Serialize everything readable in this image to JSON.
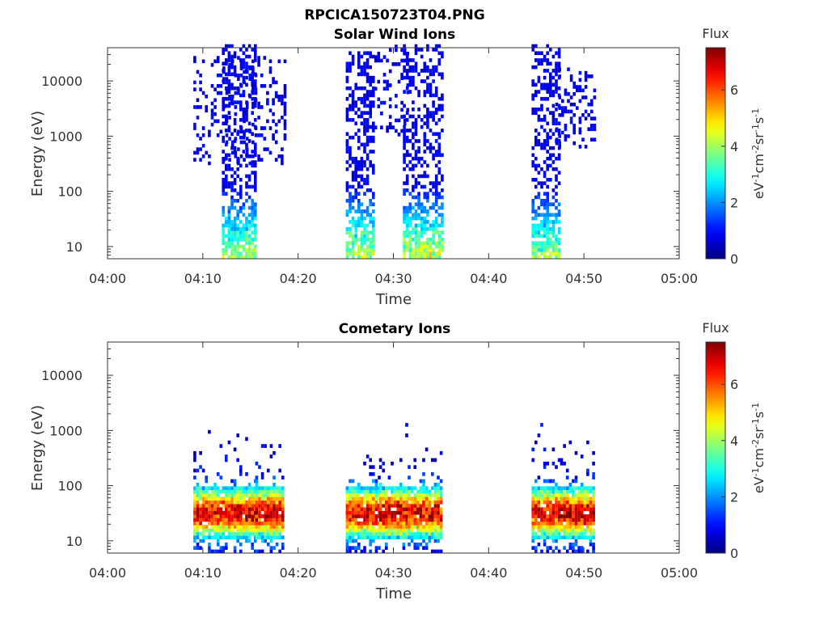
{
  "figure": {
    "title": "RPCICA150723T04.PNG"
  },
  "colorbar": {
    "label": "Flux",
    "ticks": [
      "0",
      "2",
      "4",
      "6"
    ],
    "unit_parts": [
      "eV",
      "-1",
      "cm",
      "-2",
      "sr",
      "-1",
      "s",
      "-1"
    ]
  },
  "chart_data": [
    {
      "type": "heatmap",
      "title": "Solar Wind Ions",
      "xlabel": "Time",
      "ylabel": "Energy (eV)",
      "yscale": "log",
      "ylim": [
        6,
        40000
      ],
      "xlim": [
        "04:00",
        "05:00"
      ],
      "xticks": [
        "04:00",
        "04:10",
        "04:20",
        "04:30",
        "04:40",
        "04:50",
        "05:00"
      ],
      "yticks": [
        "10",
        "100",
        "1000",
        "10000"
      ],
      "colorbar_range": [
        0,
        7.5
      ],
      "legend_position": "right",
      "grid": false,
      "bursts": [
        {
          "time_start": "04:09",
          "time_end": "04:18.5",
          "energy_min": 300,
          "energy_max": 25000,
          "sparse": true,
          "peak_flux": 2.5
        },
        {
          "time_start": "04:12",
          "time_end": "04:15.5",
          "energy_min": 6,
          "energy_max": 40000,
          "sparse": false,
          "peak_flux": 4.0
        },
        {
          "time_start": "04:25",
          "time_end": "04:28",
          "energy_min": 6,
          "energy_max": 30000,
          "sparse": false,
          "peak_flux": 4.2
        },
        {
          "time_start": "04:28",
          "time_end": "04:31.5",
          "energy_min": 1000,
          "energy_max": 40000,
          "sparse": true,
          "peak_flux": 2.0
        },
        {
          "time_start": "04:31",
          "time_end": "04:35",
          "energy_min": 6,
          "energy_max": 40000,
          "sparse": false,
          "peak_flux": 4.5
        },
        {
          "time_start": "04:44.5",
          "time_end": "04:47.5",
          "energy_min": 6,
          "energy_max": 40000,
          "sparse": false,
          "peak_flux": 3.8
        },
        {
          "time_start": "04:47",
          "time_end": "04:51",
          "energy_min": 600,
          "energy_max": 20000,
          "sparse": true,
          "peak_flux": 2.5
        }
      ]
    },
    {
      "type": "heatmap",
      "title": "Cometary Ions",
      "xlabel": "Time",
      "ylabel": "Energy (eV)",
      "yscale": "log",
      "ylim": [
        6,
        40000
      ],
      "xlim": [
        "04:00",
        "05:00"
      ],
      "xticks": [
        "04:00",
        "04:10",
        "04:20",
        "04:30",
        "04:40",
        "04:50",
        "05:00"
      ],
      "yticks": [
        "10",
        "100",
        "1000",
        "10000"
      ],
      "colorbar_range": [
        0,
        7.5
      ],
      "legend_position": "right",
      "grid": false,
      "bursts": [
        {
          "time_start": "04:09",
          "time_end": "04:12",
          "energy_min": 6,
          "energy_max": 1300,
          "peak_energy": 30,
          "peak_flux": 7.0
        },
        {
          "time_start": "04:12",
          "time_end": "04:15.5",
          "energy_min": 6,
          "energy_max": 800,
          "peak_energy": 30,
          "peak_flux": 7.0
        },
        {
          "time_start": "04:15.5",
          "time_end": "04:18.5",
          "energy_min": 6,
          "energy_max": 1500,
          "peak_energy": 30,
          "peak_flux": 7.2
        },
        {
          "time_start": "04:25",
          "time_end": "04:28.5",
          "energy_min": 6,
          "energy_max": 400,
          "peak_energy": 30,
          "peak_flux": 7.0
        },
        {
          "time_start": "04:28.5",
          "time_end": "04:31.5",
          "energy_min": 6,
          "energy_max": 1300,
          "peak_energy": 30,
          "peak_flux": 7.3
        },
        {
          "time_start": "04:31.5",
          "time_end": "04:35",
          "energy_min": 6,
          "energy_max": 600,
          "peak_energy": 30,
          "peak_flux": 7.0
        },
        {
          "time_start": "04:44.5",
          "time_end": "04:47.5",
          "energy_min": 6,
          "energy_max": 1500,
          "peak_energy": 30,
          "peak_flux": 7.0
        },
        {
          "time_start": "04:47.5",
          "time_end": "04:51",
          "energy_min": 6,
          "energy_max": 1300,
          "peak_energy": 30,
          "peak_flux": 7.3
        }
      ]
    }
  ]
}
